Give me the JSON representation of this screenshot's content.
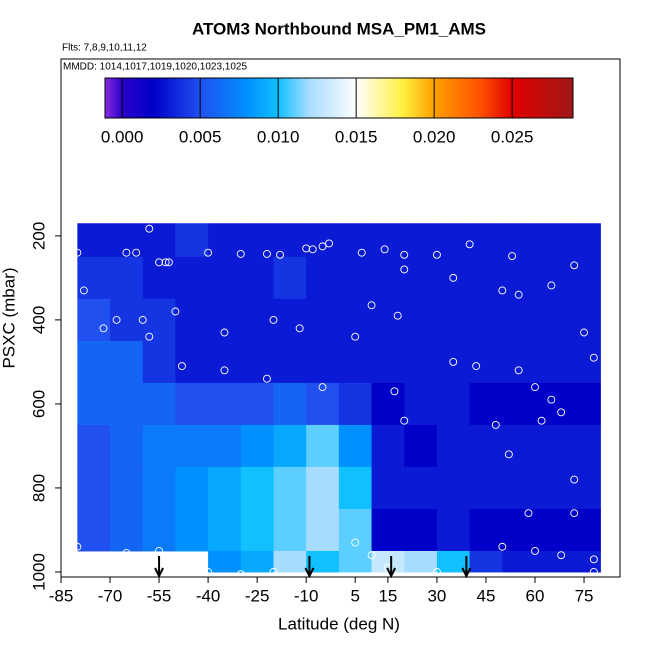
{
  "chart_data": {
    "type": "heatmap",
    "title": "ATOM3 Northbound MSA_PM1_AMS",
    "subtitle": "Flts: 7,8,9,10,11,12",
    "note": "MMDD: 1014,1017,1019,1020,1023,1025",
    "x_label": "Latitude (deg N)",
    "y_label": "PSXC (mbar)",
    "xlim": [
      -85,
      86
    ],
    "ylim": [
      -221,
      1012
    ],
    "xticks": [
      -85,
      -70,
      -55,
      -40,
      -25,
      -10,
      5,
      15,
      30,
      45,
      60,
      75
    ],
    "yticks": [
      200,
      400,
      600,
      800,
      1000
    ],
    "x_edges": [
      -80,
      -70,
      -60,
      -50,
      -40,
      -30,
      -20,
      -10,
      0,
      10,
      20,
      30,
      40,
      50,
      60,
      70,
      80
    ],
    "y_edges": [
      170,
      250,
      350,
      450,
      550,
      650,
      750,
      850,
      950,
      1000
    ],
    "values": [
      [
        0.003,
        0.003,
        0.003,
        0.004,
        0.003,
        0.003,
        0.003,
        0.003,
        0.003,
        0.003,
        0.003,
        0.003,
        0.003,
        0.003,
        0.003,
        0.003
      ],
      [
        0.004,
        0.004,
        0.003,
        0.003,
        0.003,
        0.003,
        0.004,
        0.003,
        0.003,
        0.003,
        0.003,
        0.003,
        0.003,
        0.003,
        0.003,
        0.003
      ],
      [
        0.005,
        0.004,
        0.004,
        0.003,
        0.003,
        0.003,
        0.003,
        0.003,
        0.003,
        0.003,
        0.003,
        0.003,
        0.003,
        0.003,
        0.003,
        0.003
      ],
      [
        0.006,
        0.006,
        0.004,
        0.003,
        0.003,
        0.003,
        0.003,
        0.003,
        0.003,
        0.003,
        0.003,
        0.003,
        0.003,
        0.003,
        0.003,
        0.003
      ],
      [
        0.006,
        0.006,
        0.006,
        0.005,
        0.005,
        0.005,
        0.006,
        0.005,
        0.004,
        0.002,
        0.003,
        0.003,
        0.002,
        0.002,
        0.002,
        0.002
      ],
      [
        0.005,
        0.006,
        0.007,
        0.007,
        0.007,
        0.008,
        0.009,
        0.011,
        0.008,
        0.003,
        0.002,
        0.003,
        0.003,
        0.003,
        0.003,
        0.003
      ],
      [
        0.005,
        0.006,
        0.007,
        0.008,
        0.009,
        0.01,
        0.011,
        0.012,
        0.01,
        0.003,
        0.003,
        0.003,
        0.003,
        0.003,
        0.003,
        0.003
      ],
      [
        0.005,
        0.006,
        0.007,
        0.008,
        0.009,
        0.01,
        0.011,
        0.012,
        0.011,
        0.002,
        0.002,
        0.003,
        0.002,
        0.002,
        0.002,
        0.002
      ],
      [
        null,
        null,
        null,
        null,
        0.008,
        0.009,
        0.012,
        0.01,
        0.011,
        0.013,
        0.012,
        0.01,
        0.004,
        0.003,
        0.003,
        0.003
      ]
    ],
    "colorbar_lim": [
      -0.0011,
      0.0289
    ],
    "colorbar_ticks": [
      {
        "value": 0,
        "label": "0.000"
      },
      {
        "value": 0.005,
        "label": "0.005"
      },
      {
        "value": 0.01,
        "label": "0.010"
      },
      {
        "value": 0.015,
        "label": "0.015"
      },
      {
        "value": 0.02,
        "label": "0.020"
      },
      {
        "value": 0.025,
        "label": "0.025"
      }
    ],
    "colorscale": [
      [
        -0.0011,
        "#8a2be2"
      ],
      [
        0.0,
        "#2a00c8"
      ],
      [
        0.002,
        "#0000c8"
      ],
      [
        0.005,
        "#2050f0"
      ],
      [
        0.008,
        "#0090ff"
      ],
      [
        0.01,
        "#10c0ff"
      ],
      [
        0.012,
        "#a8dcff"
      ],
      [
        0.015,
        "#ffffff"
      ],
      [
        0.018,
        "#fff040"
      ],
      [
        0.02,
        "#ffa000"
      ],
      [
        0.023,
        "#ff5000"
      ],
      [
        0.025,
        "#e00000"
      ],
      [
        0.0289,
        "#a01818"
      ]
    ],
    "points": {
      "x": [
        -58,
        -80,
        -65,
        -62,
        -55,
        -53,
        -52,
        -40,
        -30,
        -22,
        -18,
        -8,
        -5,
        -3,
        -10,
        14,
        20,
        30,
        40,
        53,
        7,
        -78,
        -85,
        -68,
        -72,
        -58,
        -60,
        -35,
        -20,
        -12,
        5,
        10,
        18,
        20,
        35,
        50,
        55,
        65,
        72,
        75,
        78,
        -50,
        -48,
        -35,
        -22,
        -5,
        17,
        35,
        42,
        55,
        60,
        65,
        68,
        20,
        48,
        52,
        62,
        -80,
        -65,
        -55,
        -50,
        -40,
        -30,
        -20,
        5,
        10,
        15,
        30,
        50,
        60,
        68,
        78,
        78,
        72,
        58,
        72
      ],
      "y": [
        183,
        240,
        240,
        240,
        263,
        263,
        263,
        240,
        243,
        243,
        245,
        232,
        225,
        218,
        230,
        232,
        245,
        245,
        220,
        248,
        240,
        330,
        330,
        400,
        420,
        440,
        400,
        430,
        400,
        420,
        440,
        365,
        390,
        280,
        300,
        330,
        340,
        318,
        270,
        430,
        490,
        380,
        510,
        520,
        540,
        560,
        570,
        500,
        510,
        520,
        560,
        590,
        620,
        640,
        650,
        720,
        640,
        940,
        955,
        950,
        990,
        1000,
        1005,
        1000,
        930,
        960,
        990,
        1000,
        940,
        950,
        960,
        970,
        1000,
        860,
        860,
        780
      ]
    },
    "arrows_x": [
      -55,
      -9,
      16,
      39
    ]
  }
}
